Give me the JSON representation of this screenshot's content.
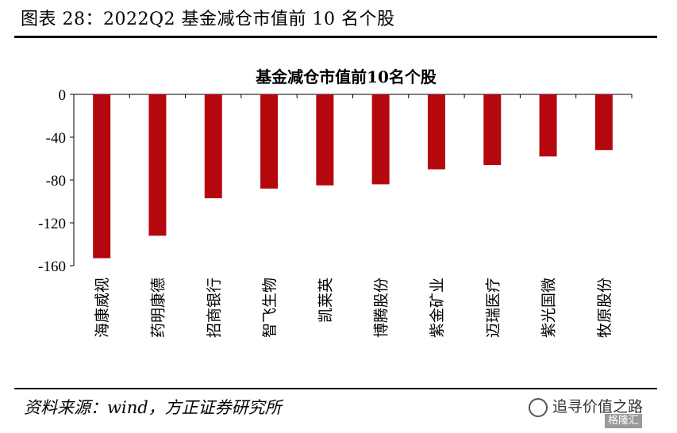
{
  "figure": {
    "title": "图表 28：2022Q2 基金减仓市值前 10 名个股",
    "source": "资料来源：wind，方正证券研究所",
    "watermark": "追寻价值之路",
    "badge": "格隆汇"
  },
  "chart_data": {
    "type": "bar",
    "title": "基金减仓市值前10名个股",
    "categories": [
      "海康威视",
      "药明康德",
      "招商银行",
      "智飞生物",
      "凯莱英",
      "博腾股份",
      "紫金矿业",
      "迈瑞医疗",
      "紫光国微",
      "牧原股份"
    ],
    "values": [
      -153,
      -132,
      -97,
      -88,
      -85,
      -84,
      -70,
      -66,
      -58,
      -52
    ],
    "ylim": [
      -160,
      0
    ],
    "yticks": [
      0,
      -40,
      -80,
      -120,
      -160
    ],
    "xlabel": "",
    "ylabel": "",
    "bar_color": "#b5080e",
    "grid": false
  }
}
